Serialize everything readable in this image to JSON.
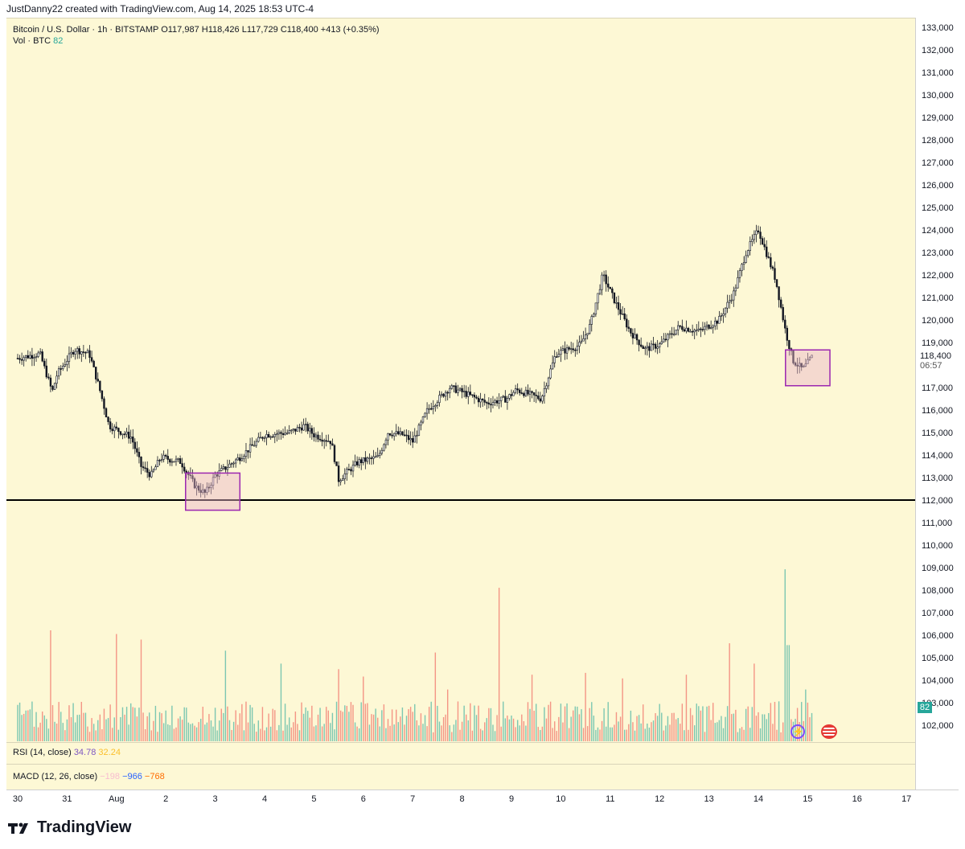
{
  "header": {
    "caption": "JustDanny22 created with TradingView.com, Aug 14, 2025 18:53 UTC-4"
  },
  "legend": {
    "symbol": "Bitcoin / U.S. Dollar · 1h · BITSTAMP",
    "ohlc": "O117,987 H118,426 L117,729 C118,400 +413 (+0.35%)",
    "volume_label": "Vol · BTC",
    "volume_value": "82"
  },
  "indicators": {
    "rsi_label": "RSI (14, close)",
    "rsi_value": "34.78",
    "rsi_ma": "32.24",
    "macd_label": "MACD (12, 26, close)",
    "macd_hist": "−198",
    "macd_line": "−966",
    "macd_signal": "−768"
  },
  "price_tag": {
    "price": "118,400",
    "countdown": "06:57"
  },
  "volume_tag": "82",
  "brand": {
    "name": "TradingView"
  },
  "colors": {
    "up": "#26a69a",
    "down": "#ef5350",
    "candle": "#131722",
    "box_stroke": "#9c27b0",
    "box_fill": "#e8b4c8",
    "background": "#fdf8d5"
  },
  "chart_data": {
    "type": "candlestick",
    "symbol": "BTCUSD",
    "timeframe": "1h",
    "y_ticks": [
      "133,000",
      "132,000",
      "131,000",
      "130,000",
      "129,000",
      "128,000",
      "127,000",
      "126,000",
      "125,000",
      "124,000",
      "123,000",
      "122,000",
      "121,000",
      "120,000",
      "119,000",
      "118,000",
      "117,000",
      "116,000",
      "115,000",
      "114,000",
      "113,000",
      "112,000",
      "111,000",
      "110,000",
      "109,000",
      "108,000",
      "107,000",
      "106,000",
      "105,000",
      "104,000",
      "103,000",
      "102,000"
    ],
    "y_tick_values": [
      133000,
      132000,
      131000,
      130000,
      129000,
      128000,
      127000,
      126000,
      125000,
      124000,
      123000,
      122000,
      121000,
      120000,
      119000,
      118000,
      117000,
      116000,
      115000,
      114000,
      113000,
      112000,
      111000,
      110000,
      109000,
      108000,
      107000,
      106000,
      105000,
      104000,
      103000,
      102000
    ],
    "x_ticks": [
      "30",
      "31",
      "Aug",
      "2",
      "3",
      "4",
      "5",
      "6",
      "7",
      "8",
      "9",
      "10",
      "11",
      "12",
      "13",
      "14",
      "15",
      "16",
      "17"
    ],
    "x_tick_days": [
      0,
      1,
      2,
      3,
      4,
      5,
      6,
      7,
      8,
      9,
      10,
      11,
      12,
      13,
      14,
      15,
      16,
      17,
      18
    ],
    "ylim": [
      101600,
      133200
    ],
    "price_path": [
      [
        0,
        118300
      ],
      [
        0.45,
        118500
      ],
      [
        0.7,
        116800
      ],
      [
        0.8,
        117600
      ],
      [
        1.15,
        118700
      ],
      [
        1.45,
        118500
      ],
      [
        1.65,
        117000
      ],
      [
        1.85,
        115300
      ],
      [
        2.3,
        114800
      ],
      [
        2.5,
        113500
      ],
      [
        2.7,
        113100
      ],
      [
        2.9,
        113900
      ],
      [
        3.3,
        113700
      ],
      [
        3.6,
        112600
      ],
      [
        3.8,
        112300
      ],
      [
        4.0,
        113100
      ],
      [
        4.5,
        113900
      ],
      [
        5.0,
        114900
      ],
      [
        5.5,
        115000
      ],
      [
        5.8,
        115300
      ],
      [
        6.0,
        114900
      ],
      [
        6.35,
        114600
      ],
      [
        6.5,
        112900
      ],
      [
        6.9,
        113700
      ],
      [
        7.3,
        113900
      ],
      [
        7.5,
        115000
      ],
      [
        7.8,
        114900
      ],
      [
        8.0,
        114600
      ],
      [
        8.3,
        116000
      ],
      [
        8.75,
        117000
      ],
      [
        9.0,
        116800
      ],
      [
        9.5,
        116300
      ],
      [
        9.9,
        116500
      ],
      [
        10.1,
        116900
      ],
      [
        10.6,
        116500
      ],
      [
        10.9,
        118500
      ],
      [
        11.4,
        118900
      ],
      [
        11.6,
        119800
      ],
      [
        11.85,
        122000
      ],
      [
        12.1,
        120800
      ],
      [
        12.4,
        119500
      ],
      [
        12.7,
        118700
      ],
      [
        13.0,
        118900
      ],
      [
        13.4,
        119700
      ],
      [
        13.8,
        119500
      ],
      [
        14.2,
        120000
      ],
      [
        14.5,
        121200
      ],
      [
        14.75,
        123000
      ],
      [
        15.0,
        124000
      ],
      [
        15.35,
        121800
      ],
      [
        15.55,
        119500
      ],
      [
        15.7,
        118200
      ],
      [
        15.9,
        117800
      ],
      [
        16.1,
        118400
      ]
    ],
    "support_level": 112000,
    "highlight_boxes": [
      {
        "x0": 3.4,
        "x1": 4.5,
        "y0": 111550,
        "y1": 113200
      },
      {
        "x0": 15.55,
        "x1": 16.45,
        "y0": 117080,
        "y1": 118670
      }
    ],
    "volume_spikes": [
      [
        0.65,
        6
      ],
      [
        2.0,
        5.8
      ],
      [
        2.5,
        5.5
      ],
      [
        4.2,
        4.9
      ],
      [
        5.35,
        4.2
      ],
      [
        6.5,
        3.9
      ],
      [
        7.0,
        3.5
      ],
      [
        8.45,
        4.8
      ],
      [
        8.7,
        2.8
      ],
      [
        9.75,
        8.3
      ],
      [
        10.4,
        3.6
      ],
      [
        11.5,
        3.7
      ],
      [
        12.25,
        3.4
      ],
      [
        13.55,
        3.6
      ],
      [
        14.4,
        5.3
      ],
      [
        14.9,
        4.2
      ],
      [
        15.55,
        9.3
      ],
      [
        15.6,
        5.2
      ],
      [
        15.95,
        2.8
      ]
    ],
    "volume_base": 1.2,
    "volume_max": 10
  }
}
